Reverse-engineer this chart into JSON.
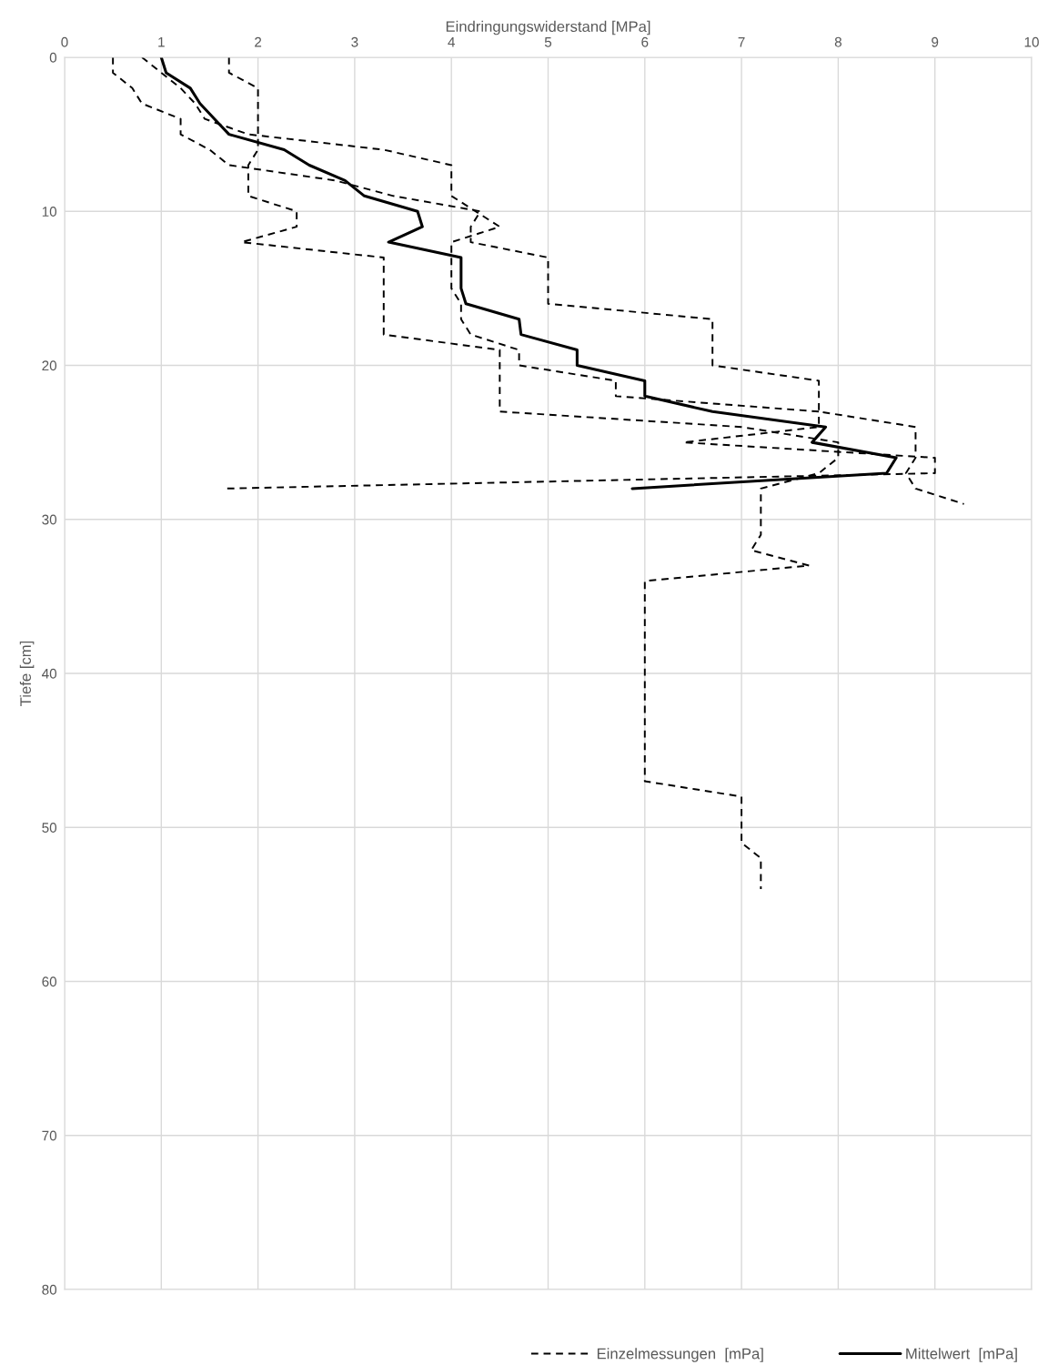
{
  "chart_data": {
    "type": "line",
    "xlabel": "Eindringungswiderstand [MPa]",
    "ylabel": "Tiefe [cm]",
    "xlim": [
      0,
      10
    ],
    "xticks": [
      0,
      1,
      2,
      3,
      4,
      5,
      6,
      7,
      8,
      9,
      10
    ],
    "ylim": [
      80,
      0
    ],
    "yticks": [
      0,
      10,
      20,
      30,
      40,
      50,
      60,
      70,
      80
    ],
    "grid": true,
    "legend": "bottom right",
    "marker": "none",
    "series": [
      {
        "name": "Einzelmessungen  [mPa]",
        "color": "#000000",
        "line_style": "dashed",
        "x": [
          0.5,
          0.5,
          0.7,
          0.8,
          1.2,
          1.2,
          1.5,
          1.7,
          2.8,
          3.4,
          4.3,
          4.2,
          4.2,
          5.0,
          5.0,
          5.0,
          5.0,
          6.7,
          6.7,
          6.7,
          6.7,
          7.8,
          7.8,
          7.8,
          8.8,
          8.8,
          8.8,
          8.7,
          8.8,
          9.3
        ],
        "values": [
          0,
          1,
          2,
          3,
          4,
          5,
          6,
          7,
          8,
          9,
          10,
          11,
          12,
          13,
          14,
          15,
          16,
          17,
          18,
          19,
          20,
          21,
          22,
          23,
          24,
          25,
          26,
          27,
          28,
          29
        ]
      },
      {
        "color": "#000000",
        "line_style": "dashed",
        "x": [
          0.8,
          1.0,
          1.2,
          1.35,
          1.45,
          1.9,
          3.3,
          4.0,
          4.0,
          4.0,
          4.25,
          4.5,
          4.0,
          4.0,
          4.0,
          4.0,
          4.1,
          4.1,
          4.2,
          4.7,
          4.7,
          5.7,
          5.7,
          7.8,
          7.8,
          6.4,
          9.0,
          9.0,
          1.65
        ],
        "values": [
          0,
          1,
          2,
          3,
          4,
          5,
          6,
          7,
          8,
          9,
          10,
          11,
          12,
          13,
          14,
          15,
          16,
          17,
          18,
          19,
          20,
          21,
          22,
          23,
          24,
          25,
          26,
          27,
          28
        ]
      },
      {
        "color": "#000000",
        "line_style": "dashed",
        "x": [
          1.7,
          1.7,
          2.0,
          2.0,
          2.0,
          2.0,
          2.0,
          1.9,
          1.9,
          1.9,
          2.4,
          2.4,
          1.83,
          3.3,
          3.3,
          3.3,
          3.3,
          3.3,
          3.3,
          4.5,
          4.5,
          4.5,
          4.5,
          4.5,
          7.0,
          8.0,
          8.0,
          7.8,
          7.2,
          7.2,
          7.2,
          7.2,
          7.1,
          7.7,
          6.0,
          6.0,
          6.0,
          6.0,
          6.0,
          6.0,
          6.0,
          6.0,
          6.0,
          6.0,
          6.0,
          6.0,
          6.0,
          6.0,
          7.0,
          7.0,
          7.0,
          7.0,
          7.2,
          7.2,
          7.2
        ],
        "values": [
          0,
          1,
          2,
          3,
          4,
          5,
          6,
          7,
          8,
          9,
          10,
          11,
          12,
          13,
          14,
          15,
          16,
          17,
          18,
          19,
          20,
          21,
          22,
          23,
          24,
          25,
          26,
          27,
          28,
          29,
          30,
          31,
          32,
          33,
          34,
          35,
          36,
          37,
          38,
          39,
          40,
          41,
          42,
          43,
          44,
          45,
          46,
          47,
          48,
          49,
          50,
          51,
          52,
          53,
          54
        ]
      },
      {
        "name": "Mittelwert  [mPa]",
        "color": "#000000",
        "line_style": "solid",
        "x": [
          1.0,
          1.05,
          1.3,
          1.4,
          1.55,
          1.7,
          2.27,
          2.53,
          2.9,
          3.1,
          3.65,
          3.7,
          3.35,
          4.1,
          4.1,
          4.1,
          4.15,
          4.7,
          4.72,
          5.3,
          5.3,
          6.0,
          6.0,
          6.7,
          7.87,
          7.73,
          8.6,
          8.5,
          5.87
        ],
        "values": [
          0,
          1,
          2,
          3,
          4,
          5,
          6,
          7,
          8,
          9,
          10,
          11,
          12,
          13,
          14,
          15,
          16,
          17,
          18,
          19,
          20,
          21,
          22,
          23,
          24,
          25,
          26,
          27,
          28
        ]
      }
    ]
  }
}
